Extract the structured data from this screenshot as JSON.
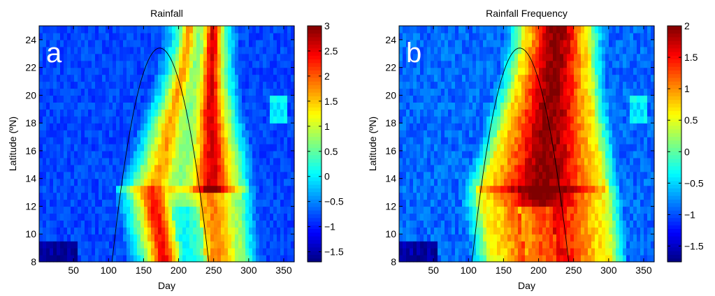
{
  "chart_data": [
    {
      "type": "heatmap",
      "panel_label": "a",
      "title": "Rainfall",
      "xlabel": "Day",
      "ylabel": "Latitude (ºN)",
      "xlim": [
        1,
        365
      ],
      "ylim": [
        8,
        25
      ],
      "xticks": [
        50,
        100,
        150,
        200,
        250,
        300,
        350
      ],
      "yticks": [
        8,
        10,
        12,
        14,
        16,
        18,
        20,
        22,
        24
      ],
      "colorbar": {
        "min": -1.7,
        "max": 3,
        "ticks": [
          -1.5,
          -1,
          -0.5,
          0,
          0.5,
          1,
          1.5,
          2,
          2.5,
          3
        ],
        "colormap": "jet"
      },
      "background_value": -0.8,
      "bands": [
        {
          "lat": 8,
          "day_start": 150,
          "day_end": 298
        },
        {
          "lat": 10,
          "day_start": 143,
          "day_end": 295
        },
        {
          "lat": 12,
          "day_start": 135,
          "day_end": 293
        },
        {
          "lat": 13,
          "day_start": 130,
          "day_end": 292
        },
        {
          "lat": 14,
          "day_start": 140,
          "day_end": 290
        },
        {
          "lat": 16,
          "day_start": 155,
          "day_end": 285
        },
        {
          "lat": 18,
          "day_start": 165,
          "day_end": 278
        },
        {
          "lat": 20,
          "day_start": 180,
          "day_end": 272
        },
        {
          "lat": 22,
          "day_start": 192,
          "day_end": 268
        },
        {
          "lat": 24,
          "day_start": 200,
          "day_end": 268
        },
        {
          "lat": 25,
          "day_start": 202,
          "day_end": 268
        }
      ],
      "curve_peak_day": 173,
      "curve_peak_lat": 23.4,
      "curve_base_days": [
        105,
        243
      ]
    },
    {
      "type": "heatmap",
      "panel_label": "b",
      "title": "Rainfall Frequency",
      "xlabel": "Day",
      "ylabel": "Latitude (ºN)",
      "xlim": [
        1,
        365
      ],
      "ylim": [
        8,
        25
      ],
      "xticks": [
        50,
        100,
        150,
        200,
        250,
        300,
        350
      ],
      "yticks": [
        8,
        10,
        12,
        14,
        16,
        18,
        20,
        22,
        24
      ],
      "colorbar": {
        "min": -1.75,
        "max": 2,
        "ticks": [
          -1.5,
          -1,
          -0.5,
          0,
          0.5,
          1,
          1.5,
          2
        ],
        "colormap": "jet"
      },
      "background_value": -0.9,
      "bands": [
        {
          "lat": 8,
          "day_start": 128,
          "day_end": 308
        },
        {
          "lat": 10,
          "day_start": 122,
          "day_end": 306
        },
        {
          "lat": 12,
          "day_start": 116,
          "day_end": 302
        },
        {
          "lat": 13,
          "day_start": 112,
          "day_end": 300
        },
        {
          "lat": 14,
          "day_start": 120,
          "day_end": 296
        },
        {
          "lat": 16,
          "day_start": 135,
          "day_end": 290
        },
        {
          "lat": 18,
          "day_start": 145,
          "day_end": 285
        },
        {
          "lat": 20,
          "day_start": 158,
          "day_end": 280
        },
        {
          "lat": 22,
          "day_start": 168,
          "day_end": 277
        },
        {
          "lat": 24,
          "day_start": 175,
          "day_end": 276
        },
        {
          "lat": 25,
          "day_start": 178,
          "day_end": 276
        }
      ],
      "curve_peak_day": 173,
      "curve_peak_lat": 23.4,
      "curve_base_days": [
        105,
        243
      ]
    }
  ]
}
